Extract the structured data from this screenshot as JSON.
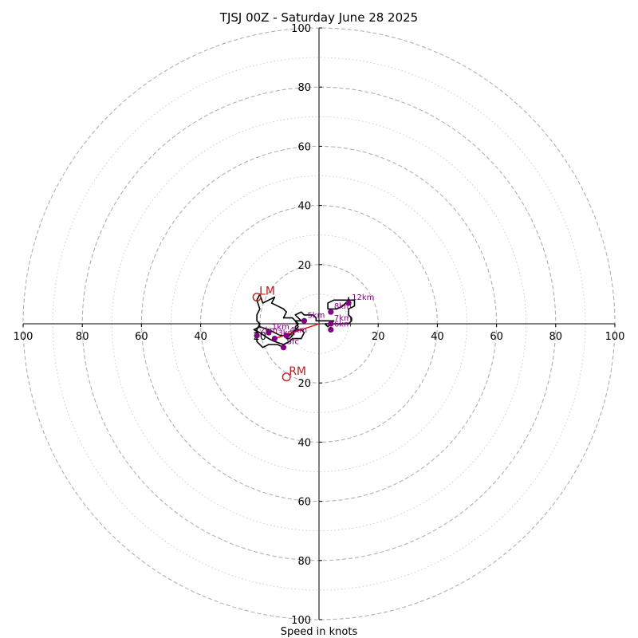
{
  "chart_data": {
    "type": "scatter",
    "title": "TJSJ 00Z - Saturday June 28 2025",
    "xlabel": "Speed in knots",
    "ylabel": "",
    "xlim": [
      -100,
      100
    ],
    "ylim": [
      -100,
      100
    ],
    "ring_values": [
      20,
      40,
      60,
      80,
      100
    ],
    "minor_ring_values": [
      10,
      30,
      50,
      70,
      90
    ],
    "tick_labels": [
      "100",
      "80",
      "60",
      "40",
      "20",
      "20",
      "40",
      "60",
      "80",
      "100"
    ],
    "grid": true,
    "colors": {
      "hodograph": "#000000",
      "height_marker": "#800080",
      "storm_motion": "#b22222",
      "shear_vector": "#ff0000",
      "grid": "#b0b0b0"
    },
    "hodograph_trace": [
      [
        -12,
        -8
      ],
      [
        -14,
        -7
      ],
      [
        -17,
        -7
      ],
      [
        -19,
        -8
      ],
      [
        -21,
        -6
      ],
      [
        -21,
        -4
      ],
      [
        -21,
        -2
      ],
      [
        -20,
        0
      ],
      [
        -21,
        1
      ],
      [
        -21,
        3
      ],
      [
        -20,
        5
      ],
      [
        -21,
        8
      ],
      [
        -20,
        10
      ],
      [
        -19,
        7
      ],
      [
        -17,
        8
      ],
      [
        -15,
        9
      ],
      [
        -16,
        7
      ],
      [
        -14,
        6
      ],
      [
        -12,
        5
      ],
      [
        -11,
        4
      ],
      [
        -12,
        2
      ],
      [
        -9,
        2
      ],
      [
        -7,
        0
      ],
      [
        -8,
        -1
      ],
      [
        -8,
        -2
      ],
      [
        -9,
        -4
      ],
      [
        -10,
        -5
      ],
      [
        -11,
        -5
      ],
      [
        -9,
        -3
      ],
      [
        -8,
        -2
      ],
      [
        -6,
        -2
      ],
      [
        -5,
        -3
      ],
      [
        -6,
        -5
      ],
      [
        -8,
        -5
      ],
      [
        -9,
        -5
      ],
      [
        -10,
        -6
      ],
      [
        -12,
        -7
      ],
      [
        -15,
        -6
      ],
      [
        -17,
        -5
      ],
      [
        -20,
        -3
      ],
      [
        -22,
        -2
      ],
      [
        -20,
        -1
      ],
      [
        -17,
        -2
      ],
      [
        -15,
        -3
      ],
      [
        -13,
        -4
      ],
      [
        -11,
        -4
      ],
      [
        -9,
        -3
      ],
      [
        -7,
        -1
      ],
      [
        -8,
        1
      ],
      [
        -6,
        1
      ],
      [
        -7,
        2
      ],
      [
        -8,
        3
      ],
      [
        -6,
        4
      ],
      [
        -5,
        3
      ],
      [
        -3,
        3
      ],
      [
        -2,
        3
      ],
      [
        -1,
        2
      ],
      [
        -1,
        1
      ],
      [
        0,
        1
      ],
      [
        1,
        1
      ],
      [
        3,
        1
      ],
      [
        5,
        1
      ],
      [
        4,
        0
      ],
      [
        3,
        0
      ],
      [
        2,
        0
      ],
      [
        3,
        -1
      ],
      [
        4,
        0
      ],
      [
        6,
        0
      ],
      [
        7,
        0
      ],
      [
        9,
        0
      ],
      [
        10,
        0
      ],
      [
        11,
        1
      ],
      [
        11,
        2
      ],
      [
        10,
        3
      ],
      [
        10,
        5
      ],
      [
        12,
        6
      ],
      [
        12,
        7
      ],
      [
        12,
        8
      ],
      [
        9,
        8
      ],
      [
        7,
        8
      ],
      [
        5,
        8
      ],
      [
        3,
        7
      ],
      [
        3,
        5
      ],
      [
        4,
        5
      ],
      [
        5,
        5
      ],
      [
        6,
        5
      ],
      [
        8,
        6
      ],
      [
        9,
        7
      ],
      [
        10,
        8
      ],
      [
        10,
        9
      ]
    ],
    "height_points": [
      {
        "label": "Sfc",
        "u": -12,
        "v": -8
      },
      {
        "label": "1km",
        "u": -17,
        "v": -3
      },
      {
        "label": "2km",
        "u": -21,
        "v": -4
      },
      {
        "label": "3km",
        "u": -15,
        "v": -5
      },
      {
        "label": "4km",
        "u": -11,
        "v": -4
      },
      {
        "label": "5km",
        "u": -5,
        "v": 1
      },
      {
        "label": "6km",
        "u": 4,
        "v": -2
      },
      {
        "label": "7km",
        "u": 4,
        "v": 0
      },
      {
        "label": "8km",
        "u": 4,
        "v": 4
      },
      {
        "label": "12km",
        "u": 10,
        "v": 7
      }
    ],
    "storm_motion": [
      {
        "label": "LM",
        "u": -21,
        "v": 9
      },
      {
        "label": "RM",
        "u": -11,
        "v": -18
      }
    ],
    "shear_vector": {
      "from": [
        -15,
        -5
      ],
      "to": [
        0,
        0
      ]
    }
  }
}
